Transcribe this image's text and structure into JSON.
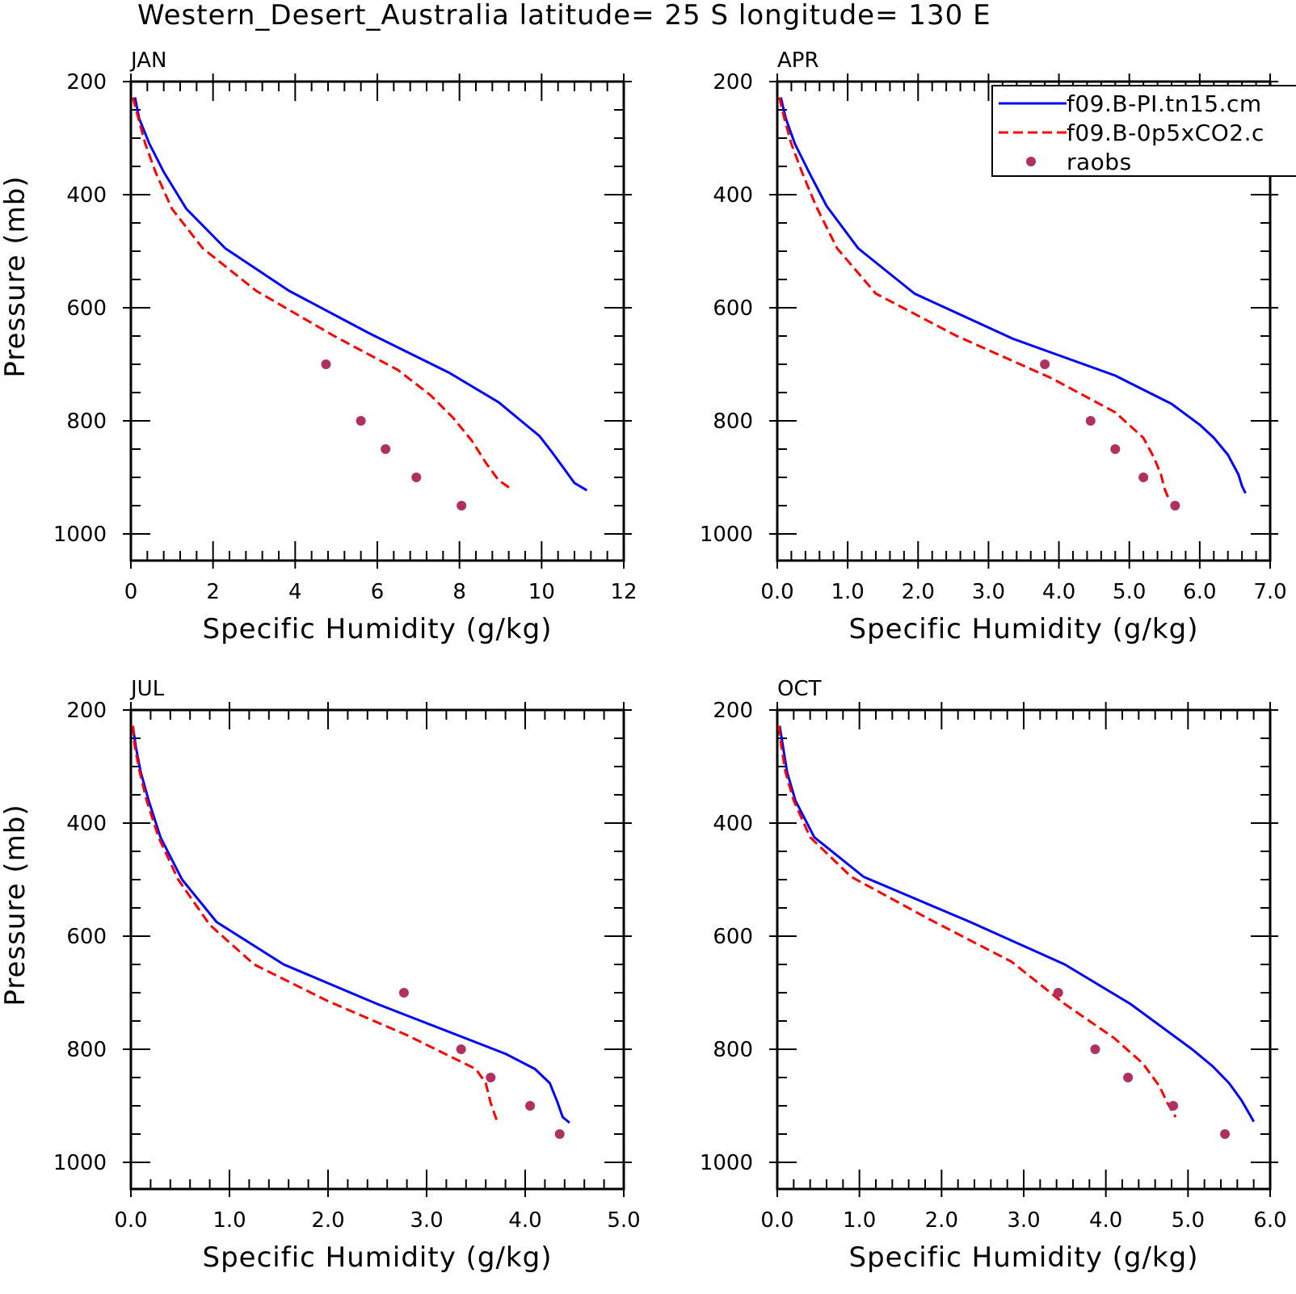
{
  "suptitle": "Western_Desert_Australia  latitude= 25 S longitude= 130 E",
  "legend": {
    "entries": [
      {
        "label": "f09.B-PI.tn15.cm",
        "color": "#0000ff",
        "style": "solid"
      },
      {
        "label": "f09.B-0p5xCO2.c",
        "color": "#ff0000",
        "style": "dashed"
      },
      {
        "label": "raobs",
        "color": "#b03060",
        "style": "marker"
      }
    ]
  },
  "chart_data": [
    {
      "type": "line",
      "title": "JAN",
      "xlabel": "Specific Humidity (g/kg)",
      "ylabel": "Pressure (mb)",
      "xlim": [
        0,
        12
      ],
      "ylim": [
        1000,
        200
      ],
      "y_inverted": true,
      "xticks": [
        "0",
        "2",
        "4",
        "6",
        "8",
        "10",
        "12"
      ],
      "yticks": [
        "200",
        "400",
        "600",
        "800",
        "1000"
      ],
      "series": [
        {
          "name": "f09.B-PI.tn15.cm",
          "style": "solid",
          "points": [
            [
              0.1,
              228
            ],
            [
              0.2,
              265
            ],
            [
              0.45,
              310
            ],
            [
              0.8,
              360
            ],
            [
              1.35,
              425
            ],
            [
              2.3,
              495
            ],
            [
              3.85,
              570
            ],
            [
              5.8,
              645
            ],
            [
              7.75,
              715
            ],
            [
              8.95,
              767
            ],
            [
              9.5,
              800
            ],
            [
              9.95,
              827
            ],
            [
              10.25,
              855
            ],
            [
              10.55,
              885
            ],
            [
              10.8,
              910
            ],
            [
              11.1,
              923
            ]
          ]
        },
        {
          "name": "f09.B-0p5xCO2.c",
          "style": "dashed",
          "points": [
            [
              0.05,
              228
            ],
            [
              0.2,
              270
            ],
            [
              0.35,
              310
            ],
            [
              0.6,
              360
            ],
            [
              1.0,
              425
            ],
            [
              1.75,
              495
            ],
            [
              3.05,
              570
            ],
            [
              4.95,
              650
            ],
            [
              6.5,
              710
            ],
            [
              7.3,
              755
            ],
            [
              7.85,
              795
            ],
            [
              8.3,
              835
            ],
            [
              8.65,
              875
            ],
            [
              8.95,
              905
            ],
            [
              9.25,
              920
            ]
          ]
        },
        {
          "name": "raobs",
          "style": "marker",
          "points": [
            [
              4.75,
              700
            ],
            [
              5.6,
              800
            ],
            [
              6.2,
              850
            ],
            [
              6.95,
              900
            ],
            [
              8.05,
              950
            ]
          ]
        }
      ]
    },
    {
      "type": "line",
      "title": "APR",
      "xlabel": "Specific Humidity (g/kg)",
      "ylabel": "",
      "xlim": [
        0,
        7
      ],
      "ylim": [
        1000,
        200
      ],
      "y_inverted": true,
      "xticks": [
        "0.0",
        "1.0",
        "2.0",
        "3.0",
        "4.0",
        "5.0",
        "6.0",
        "7.0"
      ],
      "yticks": [
        "200",
        "400",
        "600",
        "800",
        "1000"
      ],
      "series": [
        {
          "name": "f09.B-PI.tn15.cm",
          "style": "solid",
          "points": [
            [
              0.05,
              228
            ],
            [
              0.12,
              265
            ],
            [
              0.25,
              310
            ],
            [
              0.45,
              360
            ],
            [
              0.7,
              420
            ],
            [
              1.15,
              495
            ],
            [
              1.95,
              575
            ],
            [
              3.35,
              655
            ],
            [
              4.8,
              720
            ],
            [
              5.6,
              770
            ],
            [
              6.0,
              807
            ],
            [
              6.2,
              830
            ],
            [
              6.4,
              860
            ],
            [
              6.55,
              895
            ],
            [
              6.6,
              915
            ],
            [
              6.65,
              928
            ]
          ]
        },
        {
          "name": "f09.B-0p5xCO2.c",
          "style": "dashed",
          "points": [
            [
              0.03,
              228
            ],
            [
              0.1,
              265
            ],
            [
              0.2,
              310
            ],
            [
              0.35,
              360
            ],
            [
              0.55,
              420
            ],
            [
              0.85,
              495
            ],
            [
              1.4,
              575
            ],
            [
              2.55,
              650
            ],
            [
              3.9,
              725
            ],
            [
              4.8,
              785
            ],
            [
              5.2,
              830
            ],
            [
              5.35,
              865
            ],
            [
              5.45,
              895
            ],
            [
              5.5,
              920
            ],
            [
              5.55,
              935
            ]
          ]
        },
        {
          "name": "raobs",
          "style": "marker",
          "points": [
            [
              3.8,
              700
            ],
            [
              4.45,
              800
            ],
            [
              4.8,
              850
            ],
            [
              5.2,
              900
            ],
            [
              5.65,
              950
            ]
          ]
        }
      ]
    },
    {
      "type": "line",
      "title": "JUL",
      "xlabel": "Specific Humidity (g/kg)",
      "ylabel": "Pressure (mb)",
      "xlim": [
        0,
        5
      ],
      "ylim": [
        1000,
        200
      ],
      "y_inverted": true,
      "xticks": [
        "0.0",
        "1.0",
        "2.0",
        "3.0",
        "4.0",
        "5.0"
      ],
      "yticks": [
        "200",
        "400",
        "600",
        "800",
        "1000"
      ],
      "series": [
        {
          "name": "f09.B-PI.tn15.cm",
          "style": "solid",
          "points": [
            [
              0.02,
              228
            ],
            [
              0.05,
              265
            ],
            [
              0.1,
              310
            ],
            [
              0.18,
              360
            ],
            [
              0.3,
              425
            ],
            [
              0.52,
              500
            ],
            [
              0.87,
              575
            ],
            [
              1.55,
              650
            ],
            [
              2.5,
              720
            ],
            [
              3.8,
              808
            ],
            [
              4.1,
              835
            ],
            [
              4.25,
              860
            ],
            [
              4.33,
              895
            ],
            [
              4.38,
              920
            ],
            [
              4.45,
              930
            ]
          ]
        },
        {
          "name": "f09.B-0p5xCO2.c",
          "style": "dashed",
          "points": [
            [
              0.02,
              228
            ],
            [
              0.04,
              265
            ],
            [
              0.09,
              310
            ],
            [
              0.16,
              360
            ],
            [
              0.28,
              425
            ],
            [
              0.48,
              500
            ],
            [
              0.8,
              580
            ],
            [
              1.25,
              650
            ],
            [
              2.0,
              715
            ],
            [
              2.8,
              775
            ],
            [
              3.15,
              805
            ],
            [
              3.5,
              835
            ],
            [
              3.6,
              860
            ],
            [
              3.65,
              895
            ],
            [
              3.7,
              920
            ],
            [
              3.72,
              930
            ]
          ]
        },
        {
          "name": "raobs",
          "style": "marker",
          "points": [
            [
              2.77,
              700
            ],
            [
              3.35,
              800
            ],
            [
              3.65,
              850
            ],
            [
              4.05,
              900
            ],
            [
              4.35,
              950
            ]
          ]
        }
      ]
    },
    {
      "type": "line",
      "title": "OCT",
      "xlabel": "Specific Humidity (g/kg)",
      "ylabel": "",
      "xlim": [
        0,
        6
      ],
      "ylim": [
        1000,
        200
      ],
      "y_inverted": true,
      "xticks": [
        "0.0",
        "1.0",
        "2.0",
        "3.0",
        "4.0",
        "5.0",
        "6.0"
      ],
      "yticks": [
        "200",
        "400",
        "600",
        "800",
        "1000"
      ],
      "series": [
        {
          "name": "f09.B-PI.tn15.cm",
          "style": "solid",
          "points": [
            [
              0.03,
              228
            ],
            [
              0.07,
              265
            ],
            [
              0.12,
              310
            ],
            [
              0.22,
              360
            ],
            [
              0.45,
              425
            ],
            [
              1.05,
              495
            ],
            [
              2.35,
              575
            ],
            [
              3.5,
              650
            ],
            [
              4.3,
              720
            ],
            [
              5.05,
              800
            ],
            [
              5.3,
              830
            ],
            [
              5.5,
              860
            ],
            [
              5.65,
              890
            ],
            [
              5.75,
              915
            ],
            [
              5.8,
              928
            ]
          ]
        },
        {
          "name": "f09.B-0p5xCO2.c",
          "style": "dashed",
          "points": [
            [
              0.02,
              228
            ],
            [
              0.05,
              265
            ],
            [
              0.1,
              310
            ],
            [
              0.2,
              360
            ],
            [
              0.4,
              425
            ],
            [
              0.9,
              495
            ],
            [
              1.85,
              570
            ],
            [
              2.85,
              645
            ],
            [
              3.5,
              720
            ],
            [
              4.1,
              780
            ],
            [
              4.45,
              825
            ],
            [
              4.65,
              865
            ],
            [
              4.75,
              895
            ],
            [
              4.85,
              920
            ]
          ]
        },
        {
          "name": "raobs",
          "style": "marker",
          "points": [
            [
              3.42,
              700
            ],
            [
              3.87,
              800
            ],
            [
              4.27,
              850
            ],
            [
              4.82,
              900
            ],
            [
              5.45,
              950
            ]
          ]
        }
      ]
    }
  ]
}
